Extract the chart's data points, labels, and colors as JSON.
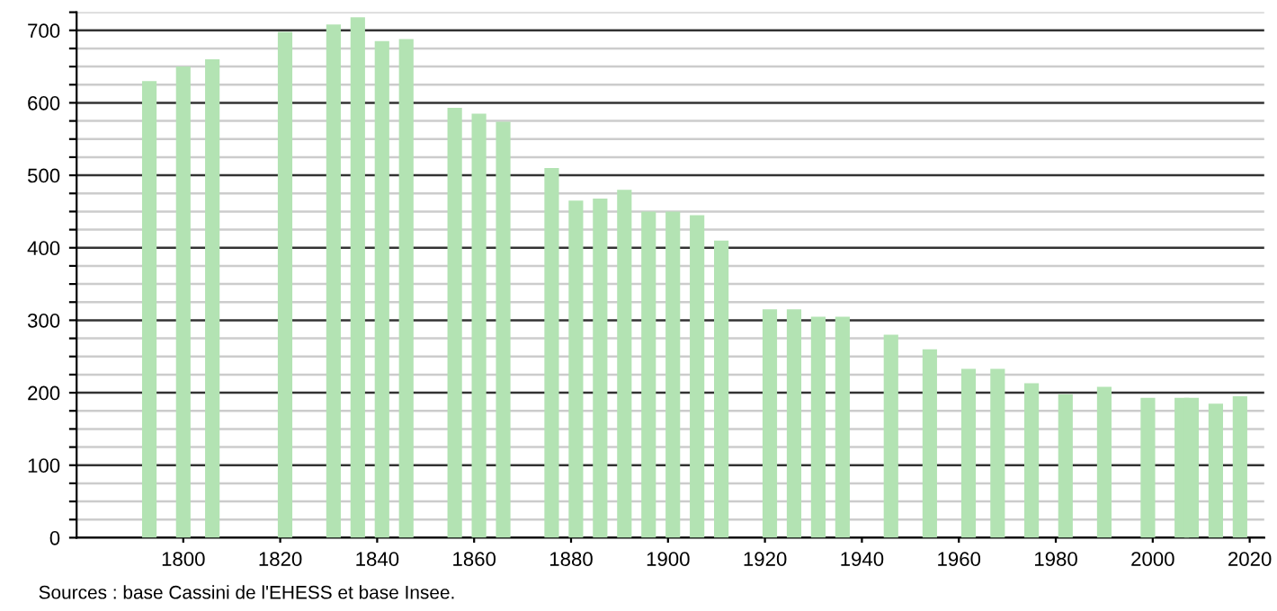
{
  "chart_data": {
    "type": "bar",
    "x": [
      1793,
      1800,
      1806,
      1821,
      1831,
      1836,
      1841,
      1846,
      1856,
      1861,
      1866,
      1876,
      1881,
      1886,
      1891,
      1896,
      1901,
      1906,
      1911,
      1921,
      1926,
      1931,
      1936,
      1946,
      1954,
      1962,
      1968,
      1975,
      1982,
      1990,
      1999,
      2006,
      2008,
      2013,
      2018
    ],
    "values": [
      630,
      650,
      660,
      698,
      708,
      718,
      685,
      688,
      593,
      585,
      574,
      510,
      465,
      468,
      480,
      450,
      450,
      445,
      410,
      315,
      315,
      305,
      305,
      280,
      260,
      233,
      233,
      213,
      198,
      208,
      193,
      193,
      193,
      185,
      195
    ],
    "color": "#b3e3b3",
    "xlim": [
      1778,
      2023
    ],
    "xticks": [
      1800,
      1820,
      1840,
      1860,
      1880,
      1900,
      1920,
      1940,
      1960,
      1980,
      2000,
      2020
    ],
    "ylim": [
      0,
      725
    ],
    "yticks": [
      0,
      {
        "value": 25,
        "label": null
      },
      {
        "value": 50,
        "label": null
      },
      {
        "value": 75,
        "label": null
      },
      100,
      {
        "value": 125,
        "label": null
      },
      {
        "value": 150,
        "label": null
      },
      {
        "value": 175,
        "label": null
      },
      200,
      {
        "value": 225,
        "label": null
      },
      {
        "value": 250,
        "label": null
      },
      {
        "value": 275,
        "label": null
      },
      300,
      {
        "value": 325,
        "label": null
      },
      {
        "value": 350,
        "label": null
      },
      {
        "value": 375,
        "label": null
      },
      400,
      {
        "value": 425,
        "label": null
      },
      {
        "value": 450,
        "label": null
      },
      {
        "value": 475,
        "label": null
      },
      500,
      {
        "value": 525,
        "label": null
      },
      {
        "value": 550,
        "label": null
      },
      {
        "value": 575,
        "label": null
      },
      600,
      {
        "value": 625,
        "label": null
      },
      {
        "value": 650,
        "label": null
      },
      {
        "value": 675,
        "label": null
      },
      700,
      {
        "value": 725,
        "label": null
      }
    ],
    "grid": "y",
    "annotations": [
      "Sources : base Cassini de l'EHESS et base Insee."
    ]
  }
}
